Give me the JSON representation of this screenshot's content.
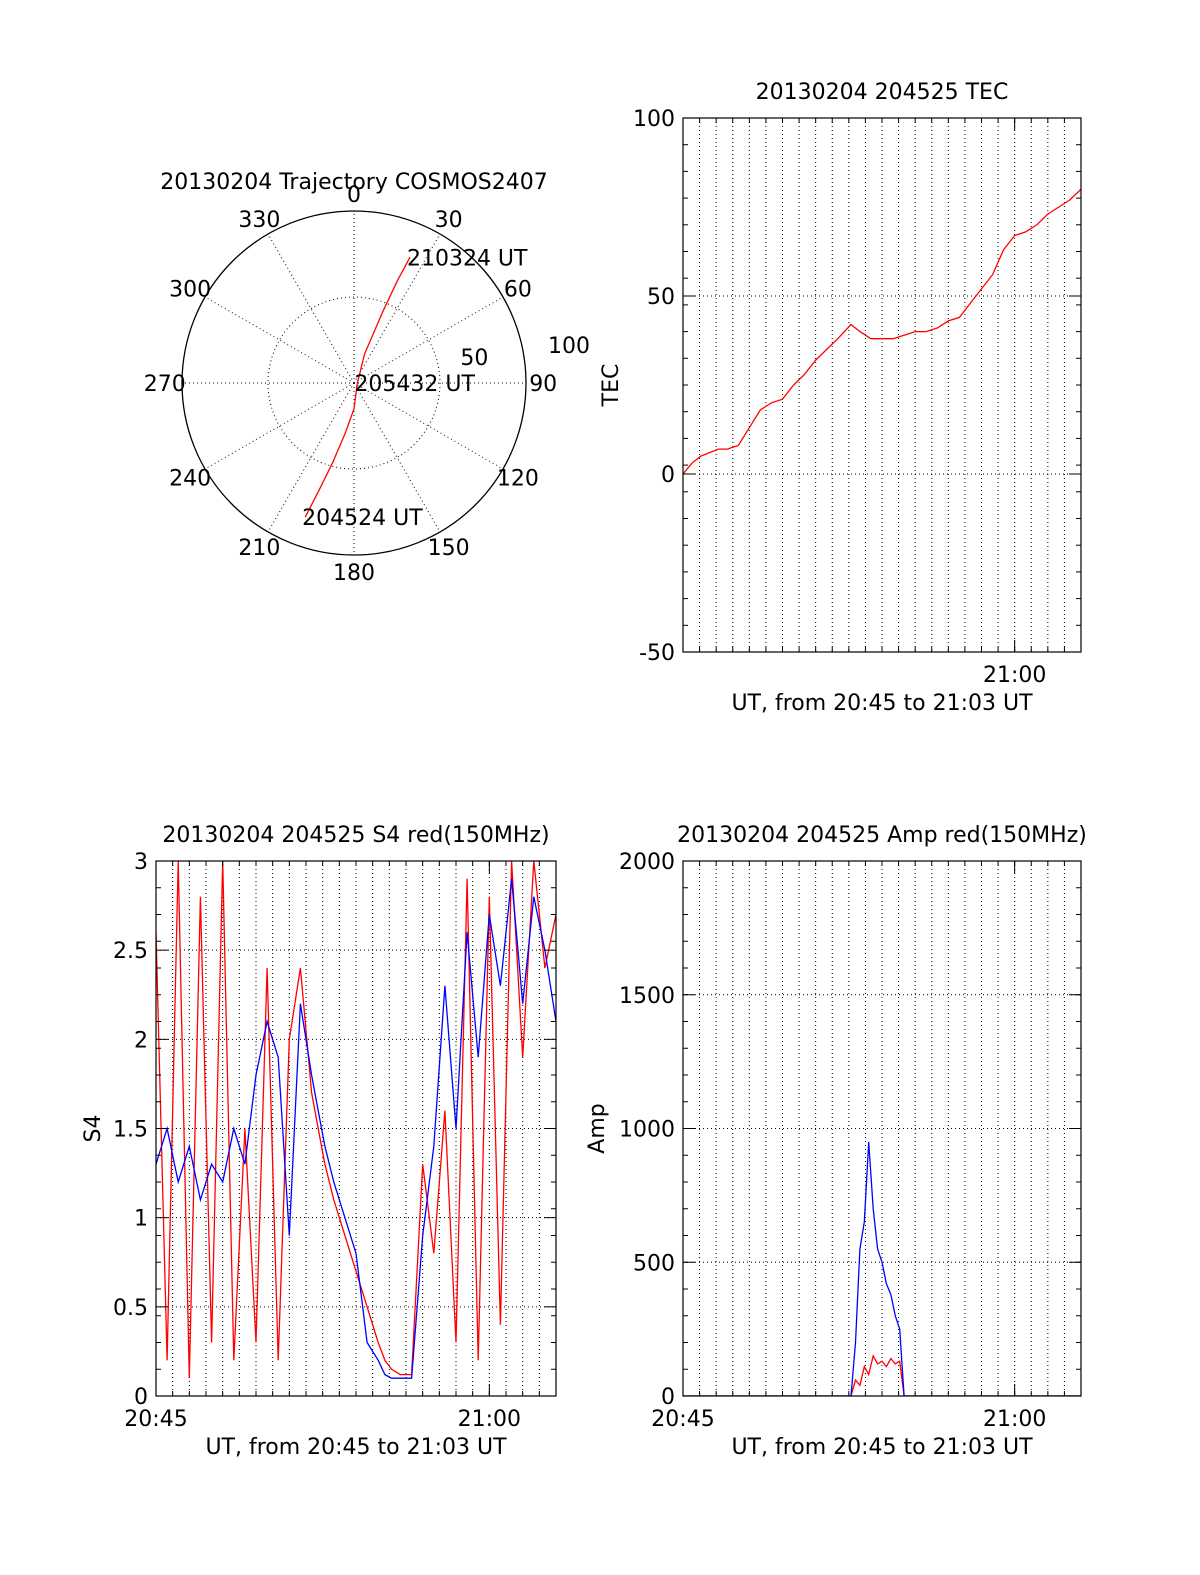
{
  "colors": {
    "red": "#ff0000",
    "blue": "#0000ff",
    "axis": "#000000",
    "grid": "#000000"
  },
  "chart_data": [
    {
      "type": "polar-trajectory",
      "title": "20130204 Trajectory COSMOS2407",
      "azimuth_labels": [
        "0",
        "30",
        "60",
        "90",
        "120",
        "150",
        "180",
        "210",
        "240",
        "270",
        "300",
        "330"
      ],
      "radial_labels": [
        "50",
        "100"
      ],
      "radial_range": [
        0,
        100
      ],
      "grid": true,
      "track_color": "red",
      "track": [
        {
          "az": 200,
          "r": 83
        },
        {
          "az": 198,
          "r": 65
        },
        {
          "az": 195,
          "r": 48
        },
        {
          "az": 190,
          "r": 30
        },
        {
          "az": 180,
          "r": 15
        },
        {
          "az": 90,
          "r": 2
        },
        {
          "az": 20,
          "r": 18
        },
        {
          "az": 22,
          "r": 45
        },
        {
          "az": 23,
          "r": 65
        },
        {
          "az": 24,
          "r": 80
        }
      ],
      "annotations": [
        {
          "text": "210324 UT",
          "az": 24,
          "r": 80
        },
        {
          "text": "205432 UT",
          "az": 90,
          "r": 2
        },
        {
          "text": "204524 UT",
          "az": 200,
          "r": 83
        }
      ]
    },
    {
      "type": "line",
      "title": "20130204 204525 TEC",
      "xlabel": "UT, from 20:45 to 21:03 UT",
      "ylabel": "TEC",
      "xlim": [
        0,
        18
      ],
      "ylim": [
        -50,
        100
      ],
      "xticks": [
        {
          "x": 15,
          "label": "21:00"
        }
      ],
      "yticks": [
        {
          "y": -50,
          "label": "-50"
        },
        {
          "y": 0,
          "label": "0"
        },
        {
          "y": 50,
          "label": "50"
        },
        {
          "y": 100,
          "label": "100"
        }
      ],
      "vgrid_step": 0.75,
      "hgrid": [
        0,
        50
      ],
      "series": [
        {
          "color": "red",
          "x": [
            0,
            0.4,
            0.8,
            1.2,
            1.6,
            2.0,
            2.5,
            3.0,
            3.5,
            4.0,
            4.5,
            5.0,
            5.5,
            6.0,
            6.5,
            7.0,
            7.3,
            7.6,
            8.0,
            8.5,
            9.0,
            9.5,
            10.0,
            10.5,
            11.0,
            11.5,
            12.0,
            12.5,
            13.0,
            13.5,
            14.0,
            14.5,
            15.0,
            15.5,
            16.0,
            16.5,
            17.0,
            17.5,
            18.0
          ],
          "values": [
            0,
            3,
            5,
            6,
            7,
            7,
            8,
            13,
            18,
            20,
            21,
            25,
            28,
            32,
            35,
            38,
            40,
            42,
            40,
            38,
            38,
            38,
            39,
            40,
            40,
            41,
            43,
            44,
            48,
            52,
            56,
            63,
            67,
            68,
            70,
            73,
            75,
            77,
            80
          ]
        }
      ]
    },
    {
      "type": "line",
      "title": "20130204 204525 S4 red(150MHz)",
      "xlabel": "UT, from 20:45 to 21:03 UT",
      "ylabel": "S4",
      "xlim": [
        0,
        18
      ],
      "ylim": [
        0,
        3
      ],
      "xticks": [
        {
          "x": 0,
          "label": "20:45"
        },
        {
          "x": 15,
          "label": "21:00"
        }
      ],
      "yticks": [
        {
          "y": 0,
          "label": "0"
        },
        {
          "y": 0.5,
          "label": "0.5"
        },
        {
          "y": 1,
          "label": "1"
        },
        {
          "y": 1.5,
          "label": "1.5"
        },
        {
          "y": 2,
          "label": "2"
        },
        {
          "y": 2.5,
          "label": "2.5"
        },
        {
          "y": 3,
          "label": "3"
        }
      ],
      "vgrid_step": 0.75,
      "hgrid": [
        0.5,
        1,
        1.5,
        2,
        2.5
      ],
      "series": [
        {
          "color": "red",
          "x": [
            0,
            0.5,
            1.0,
            1.5,
            2.0,
            2.5,
            3.0,
            3.5,
            4.0,
            4.5,
            5.0,
            5.5,
            6.0,
            6.5,
            7.0,
            7.3,
            7.6,
            8.0,
            8.5,
            9.0,
            9.5,
            10.0,
            10.3,
            10.6,
            11.0,
            11.5,
            12.0,
            12.5,
            13.0,
            13.5,
            14.0,
            14.5,
            15.0,
            15.5,
            16.0,
            16.5,
            17.0,
            17.5,
            18.0
          ],
          "values": [
            2.6,
            0.2,
            3.0,
            0.1,
            2.8,
            0.3,
            3.0,
            0.2,
            1.5,
            0.3,
            2.4,
            0.2,
            2.0,
            2.4,
            1.7,
            1.5,
            1.3,
            1.1,
            0.9,
            0.7,
            0.5,
            0.3,
            0.2,
            0.15,
            0.12,
            0.12,
            1.3,
            0.8,
            1.6,
            0.3,
            2.9,
            0.2,
            2.8,
            0.4,
            3.0,
            1.9,
            3.0,
            2.4,
            2.7
          ]
        },
        {
          "color": "blue",
          "x": [
            0,
            0.5,
            1.0,
            1.5,
            2.0,
            2.5,
            3.0,
            3.5,
            4.0,
            4.5,
            5.0,
            5.5,
            6.0,
            6.5,
            7.0,
            7.3,
            7.6,
            8.0,
            8.5,
            9.0,
            9.5,
            10.0,
            10.3,
            10.6,
            11.0,
            11.5,
            12.0,
            12.5,
            13.0,
            13.5,
            14.0,
            14.5,
            15.0,
            15.5,
            16.0,
            16.5,
            17.0,
            17.5,
            18.0
          ],
          "values": [
            1.3,
            1.5,
            1.2,
            1.4,
            1.1,
            1.3,
            1.2,
            1.5,
            1.3,
            1.8,
            2.1,
            1.9,
            0.9,
            2.2,
            1.8,
            1.6,
            1.4,
            1.2,
            1.0,
            0.8,
            0.3,
            0.2,
            0.12,
            0.1,
            0.1,
            0.1,
            0.9,
            1.4,
            2.3,
            1.5,
            2.6,
            1.9,
            2.7,
            2.3,
            2.9,
            2.2,
            2.8,
            2.5,
            2.1
          ]
        }
      ]
    },
    {
      "type": "line",
      "title": "20130204 204525 Amp red(150MHz)",
      "xlabel": "UT, from 20:45 to 21:03 UT",
      "ylabel": "Amp",
      "xlim": [
        0,
        18
      ],
      "ylim": [
        0,
        2000
      ],
      "xticks": [
        {
          "x": 0,
          "label": "20:45"
        },
        {
          "x": 15,
          "label": "21:00"
        }
      ],
      "yticks": [
        {
          "y": 0,
          "label": "0"
        },
        {
          "y": 500,
          "label": "500"
        },
        {
          "y": 1000,
          "label": "1000"
        },
        {
          "y": 1500,
          "label": "1500"
        },
        {
          "y": 2000,
          "label": "2000"
        }
      ],
      "vgrid_step": 0.75,
      "hgrid": [
        500,
        1000,
        1500
      ],
      "series": [
        {
          "color": "red",
          "x": [
            0,
            7.6,
            7.8,
            8.0,
            8.2,
            8.4,
            8.6,
            8.8,
            9.0,
            9.2,
            9.4,
            9.6,
            9.8,
            10.0,
            18.0
          ],
          "values": [
            0,
            0,
            60,
            40,
            110,
            80,
            150,
            120,
            130,
            110,
            140,
            120,
            130,
            0,
            0
          ]
        },
        {
          "color": "blue",
          "x": [
            0,
            7.6,
            7.8,
            8.0,
            8.2,
            8.4,
            8.6,
            8.8,
            9.0,
            9.2,
            9.4,
            9.6,
            9.8,
            10.0,
            18.0
          ],
          "values": [
            0,
            0,
            200,
            550,
            650,
            950,
            700,
            550,
            500,
            420,
            380,
            300,
            250,
            0,
            0
          ]
        }
      ]
    }
  ]
}
